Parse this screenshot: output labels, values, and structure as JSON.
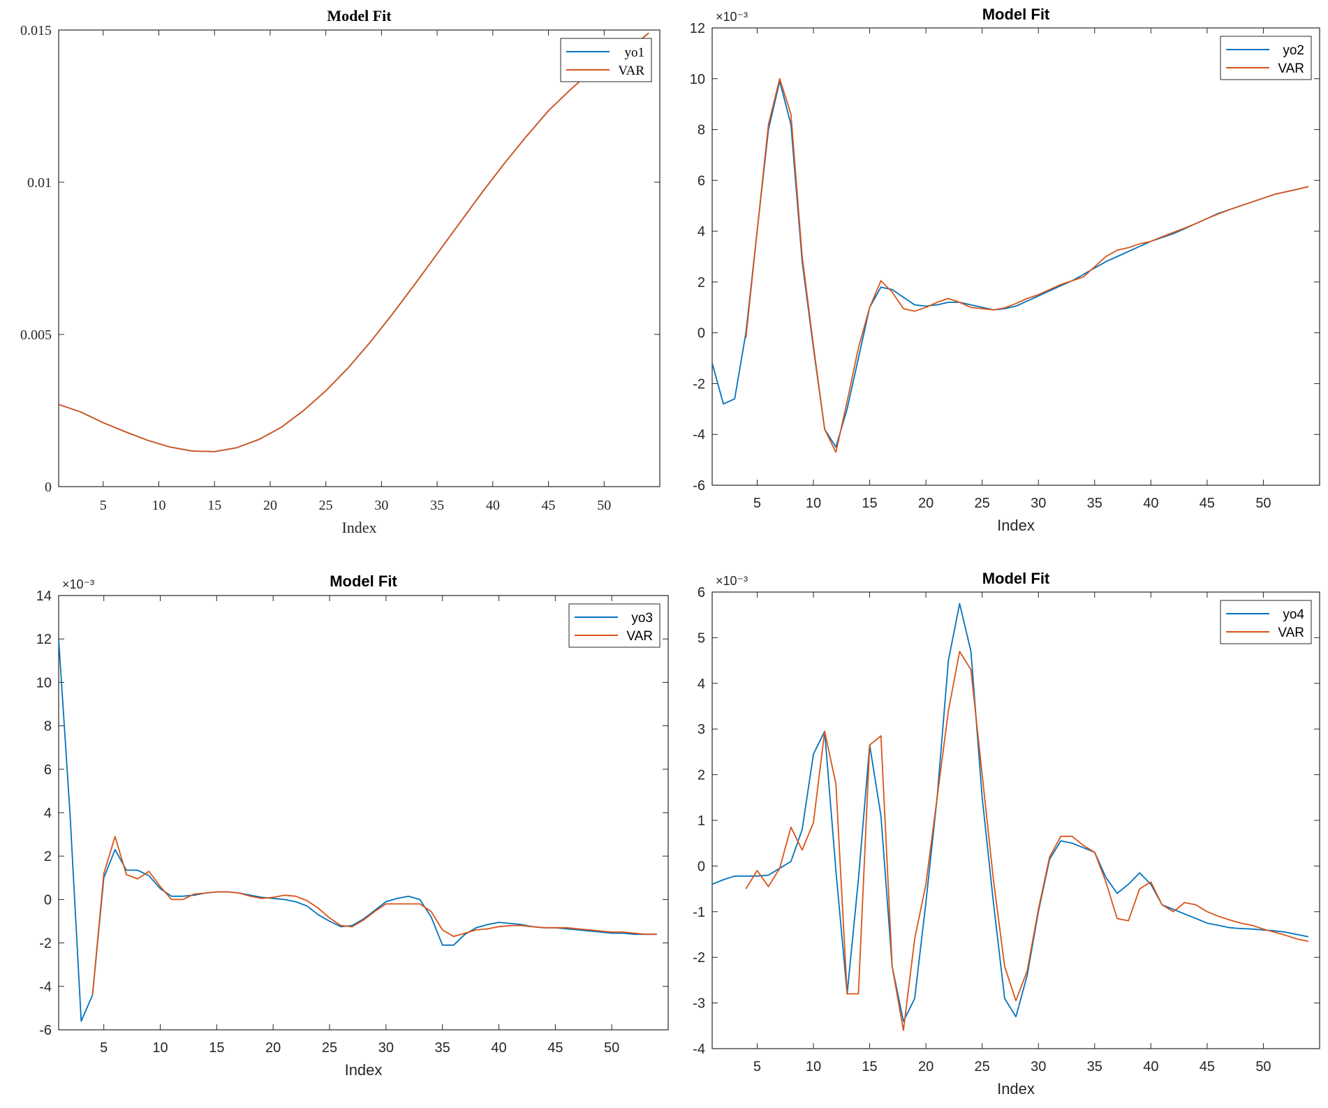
{
  "colors": {
    "blue": "#0072BD",
    "orange": "#D95319",
    "axis": "#262626",
    "background": "#ffffff"
  },
  "chart_data": [
    {
      "type": "line",
      "title": "Model Fit",
      "xlabel": "Index",
      "ylabel": "",
      "exponent_label": "",
      "xlim": [
        1,
        55
      ],
      "ylim": [
        0,
        0.015
      ],
      "xticks": [
        5,
        10,
        15,
        20,
        25,
        30,
        35,
        40,
        45,
        50
      ],
      "xtick_labels": [
        "5",
        "10",
        "15",
        "20",
        "25",
        "30",
        "35",
        "40",
        "45",
        "50"
      ],
      "yticks": [
        0,
        0.005,
        0.01,
        0.015
      ],
      "ytick_labels": [
        "0",
        "0.005",
        "0.01",
        "0.015"
      ],
      "legend": "top-right",
      "grid": false,
      "series": [
        {
          "name": "yo1",
          "color": "#0072BD",
          "x": [
            1,
            3,
            5,
            7,
            9,
            11,
            13,
            15,
            17,
            19,
            21,
            23,
            25,
            27,
            29,
            31,
            33,
            35,
            37,
            39,
            41,
            43,
            45,
            47,
            49,
            51,
            53,
            54
          ],
          "values": [
            0.0027,
            0.00245,
            0.0021,
            0.0018,
            0.00152,
            0.0013,
            0.00117,
            0.00115,
            0.00128,
            0.00155,
            0.00195,
            0.0025,
            0.00315,
            0.0039,
            0.00475,
            0.00568,
            0.00665,
            0.00765,
            0.00865,
            0.00965,
            0.0106,
            0.0115,
            0.01235,
            0.01305,
            0.0137,
            0.01415,
            0.0146,
            0.0149
          ]
        },
        {
          "name": "VAR",
          "color": "#D95319",
          "x": [
            1,
            3,
            5,
            7,
            9,
            11,
            13,
            15,
            17,
            19,
            21,
            23,
            25,
            27,
            29,
            31,
            33,
            35,
            37,
            39,
            41,
            43,
            45,
            47,
            49,
            51,
            53,
            54
          ],
          "values": [
            0.0027,
            0.00245,
            0.0021,
            0.0018,
            0.00152,
            0.0013,
            0.00117,
            0.00115,
            0.00128,
            0.00155,
            0.00195,
            0.0025,
            0.00315,
            0.0039,
            0.00475,
            0.00568,
            0.00665,
            0.00765,
            0.00865,
            0.00965,
            0.0106,
            0.0115,
            0.01235,
            0.01305,
            0.0137,
            0.01415,
            0.0146,
            0.0149
          ]
        }
      ]
    },
    {
      "type": "line",
      "title": "Model Fit",
      "xlabel": "Index",
      "ylabel": "",
      "exponent_label": "×10⁻³",
      "xlim": [
        1,
        55
      ],
      "ylim": [
        -6,
        12
      ],
      "xticks": [
        5,
        10,
        15,
        20,
        25,
        30,
        35,
        40,
        45,
        50
      ],
      "xtick_labels": [
        "5",
        "10",
        "15",
        "20",
        "25",
        "30",
        "35",
        "40",
        "45",
        "50"
      ],
      "yticks": [
        -6,
        -4,
        -2,
        0,
        2,
        4,
        6,
        8,
        10,
        12
      ],
      "ytick_labels": [
        "-6",
        "-4",
        "-2",
        "0",
        "2",
        "4",
        "6",
        "8",
        "10",
        "12"
      ],
      "legend": "top-right",
      "grid": false,
      "series": [
        {
          "name": "yo2",
          "color": "#0072BD",
          "x": [
            1,
            2,
            3,
            4,
            5,
            6,
            7,
            8,
            9,
            10,
            11,
            12,
            13,
            14,
            15,
            16,
            17,
            18,
            19,
            20,
            21,
            22,
            23,
            24,
            25,
            26,
            27,
            28,
            29,
            30,
            31,
            32,
            33,
            34,
            35,
            36,
            37,
            38,
            39,
            40,
            41,
            42,
            43,
            44,
            45,
            46,
            47,
            48,
            49,
            50,
            51,
            52,
            53,
            54
          ],
          "values": [
            -1.2,
            -2.8,
            -2.6,
            0.0,
            4.0,
            8.0,
            9.9,
            8.2,
            2.8,
            -0.6,
            -3.8,
            -4.5,
            -3.0,
            -1.0,
            1.0,
            1.8,
            1.7,
            1.4,
            1.1,
            1.05,
            1.1,
            1.2,
            1.2,
            1.1,
            1.0,
            0.9,
            0.95,
            1.05,
            1.25,
            1.45,
            1.65,
            1.85,
            2.05,
            2.3,
            2.55,
            2.8,
            3.0,
            3.2,
            3.4,
            3.6,
            3.75,
            3.9,
            4.1,
            4.3,
            4.5,
            4.7,
            4.85,
            5.0,
            5.15,
            5.3,
            5.45,
            5.55,
            5.65,
            5.75
          ]
        },
        {
          "name": "VAR",
          "color": "#D95319",
          "x": [
            4,
            5,
            6,
            7,
            8,
            9,
            10,
            11,
            12,
            13,
            14,
            15,
            16,
            17,
            18,
            19,
            20,
            21,
            22,
            23,
            24,
            25,
            26,
            27,
            28,
            29,
            30,
            31,
            32,
            33,
            34,
            35,
            36,
            37,
            38,
            39,
            40,
            41,
            42,
            43,
            44,
            45,
            46,
            47,
            48,
            49,
            50,
            51,
            52,
            53,
            54
          ],
          "values": [
            -0.2,
            4.0,
            8.2,
            10.0,
            8.6,
            3.0,
            -0.5,
            -3.8,
            -4.7,
            -2.7,
            -0.6,
            1.0,
            2.05,
            1.6,
            0.95,
            0.85,
            1.0,
            1.2,
            1.35,
            1.2,
            1.0,
            0.95,
            0.9,
            0.98,
            1.15,
            1.35,
            1.5,
            1.7,
            1.9,
            2.05,
            2.2,
            2.6,
            3.0,
            3.25,
            3.35,
            3.5,
            3.6,
            3.78,
            3.95,
            4.12,
            4.3,
            4.5,
            4.68,
            4.85,
            5.0,
            5.15,
            5.3,
            5.45,
            5.55,
            5.65,
            5.75
          ]
        }
      ]
    },
    {
      "type": "line",
      "title": "Model Fit",
      "xlabel": "Index",
      "ylabel": "",
      "exponent_label": "×10⁻³",
      "xlim": [
        1,
        55
      ],
      "ylim": [
        -6,
        14
      ],
      "xticks": [
        5,
        10,
        15,
        20,
        25,
        30,
        35,
        40,
        45,
        50
      ],
      "xtick_labels": [
        "5",
        "10",
        "15",
        "20",
        "25",
        "30",
        "35",
        "40",
        "45",
        "50"
      ],
      "yticks": [
        -6,
        -4,
        -2,
        0,
        2,
        4,
        6,
        8,
        10,
        12,
        14
      ],
      "ytick_labels": [
        "-6",
        "-4",
        "-2",
        "0",
        "2",
        "4",
        "6",
        "8",
        "10",
        "12",
        "14"
      ],
      "legend": "top-right",
      "grid": false,
      "series": [
        {
          "name": "yo3",
          "color": "#0072BD",
          "x": [
            1,
            2,
            3,
            4,
            5,
            6,
            7,
            8,
            9,
            10,
            11,
            12,
            13,
            14,
            15,
            16,
            17,
            18,
            19,
            20,
            21,
            22,
            23,
            24,
            25,
            26,
            27,
            28,
            29,
            30,
            31,
            32,
            33,
            34,
            35,
            36,
            37,
            38,
            39,
            40,
            41,
            42,
            43,
            44,
            45,
            46,
            47,
            48,
            49,
            50,
            51,
            52,
            53,
            54
          ],
          "values": [
            12.0,
            4.0,
            -5.6,
            -4.4,
            1.0,
            2.3,
            1.35,
            1.35,
            1.1,
            0.5,
            0.15,
            0.15,
            0.2,
            0.3,
            0.35,
            0.35,
            0.3,
            0.2,
            0.1,
            0.05,
            0.0,
            -0.1,
            -0.3,
            -0.7,
            -1.0,
            -1.25,
            -1.2,
            -0.9,
            -0.5,
            -0.1,
            0.05,
            0.15,
            0.0,
            -0.8,
            -2.1,
            -2.1,
            -1.6,
            -1.3,
            -1.15,
            -1.05,
            -1.1,
            -1.15,
            -1.25,
            -1.3,
            -1.3,
            -1.35,
            -1.4,
            -1.45,
            -1.5,
            -1.55,
            -1.55,
            -1.6,
            -1.6,
            -1.6
          ]
        },
        {
          "name": "VAR",
          "color": "#D95319",
          "x": [
            4,
            5,
            6,
            7,
            8,
            9,
            10,
            11,
            12,
            13,
            14,
            15,
            16,
            17,
            18,
            19,
            20,
            21,
            22,
            23,
            24,
            25,
            26,
            27,
            28,
            29,
            30,
            31,
            32,
            33,
            34,
            35,
            36,
            37,
            38,
            39,
            40,
            41,
            42,
            43,
            44,
            45,
            46,
            47,
            48,
            49,
            50,
            51,
            52,
            53,
            54
          ],
          "values": [
            -4.4,
            1.2,
            2.9,
            1.15,
            0.95,
            1.3,
            0.6,
            0.0,
            0.0,
            0.25,
            0.3,
            0.35,
            0.35,
            0.3,
            0.15,
            0.05,
            0.1,
            0.2,
            0.15,
            -0.05,
            -0.4,
            -0.85,
            -1.2,
            -1.25,
            -0.95,
            -0.55,
            -0.2,
            -0.2,
            -0.2,
            -0.2,
            -0.55,
            -1.4,
            -1.7,
            -1.55,
            -1.4,
            -1.35,
            -1.25,
            -1.2,
            -1.2,
            -1.25,
            -1.3,
            -1.3,
            -1.3,
            -1.35,
            -1.4,
            -1.45,
            -1.5,
            -1.5,
            -1.55,
            -1.6,
            -1.6
          ]
        }
      ]
    },
    {
      "type": "line",
      "title": "Model Fit",
      "xlabel": "Index",
      "ylabel": "",
      "exponent_label": "×10⁻³",
      "xlim": [
        1,
        55
      ],
      "ylim": [
        -4,
        6
      ],
      "xticks": [
        5,
        10,
        15,
        20,
        25,
        30,
        35,
        40,
        45,
        50
      ],
      "xtick_labels": [
        "5",
        "10",
        "15",
        "20",
        "25",
        "30",
        "35",
        "40",
        "45",
        "50"
      ],
      "yticks": [
        -4,
        -3,
        -2,
        -1,
        0,
        1,
        2,
        3,
        4,
        5,
        6
      ],
      "ytick_labels": [
        "-4",
        "-3",
        "-2",
        "-1",
        "0",
        "1",
        "2",
        "3",
        "4",
        "5",
        "6"
      ],
      "legend": "top-right",
      "grid": false,
      "series": [
        {
          "name": "yo4",
          "color": "#0072BD",
          "x": [
            1,
            2,
            3,
            4,
            5,
            6,
            7,
            8,
            9,
            10,
            11,
            12,
            13,
            14,
            15,
            16,
            17,
            18,
            19,
            20,
            21,
            22,
            23,
            24,
            25,
            26,
            27,
            28,
            29,
            30,
            31,
            32,
            33,
            34,
            35,
            36,
            37,
            38,
            39,
            40,
            41,
            42,
            43,
            44,
            45,
            46,
            47,
            48,
            49,
            50,
            51,
            52,
            53,
            54
          ],
          "values": [
            -0.4,
            -0.3,
            -0.22,
            -0.22,
            -0.22,
            -0.2,
            -0.05,
            0.1,
            0.8,
            2.45,
            2.95,
            -0.1,
            -2.8,
            -0.3,
            2.65,
            1.1,
            -2.2,
            -3.4,
            -2.9,
            -0.8,
            1.5,
            4.5,
            5.75,
            4.7,
            1.5,
            -0.8,
            -2.9,
            -3.3,
            -2.4,
            -1.0,
            0.15,
            0.55,
            0.5,
            0.4,
            0.3,
            -0.25,
            -0.6,
            -0.4,
            -0.15,
            -0.4,
            -0.85,
            -0.95,
            -1.05,
            -1.15,
            -1.25,
            -1.3,
            -1.35,
            -1.37,
            -1.38,
            -1.4,
            -1.42,
            -1.45,
            -1.5,
            -1.55
          ]
        },
        {
          "name": "VAR",
          "color": "#D95319",
          "x": [
            4,
            5,
            6,
            7,
            8,
            9,
            10,
            11,
            12,
            13,
            14,
            15,
            16,
            17,
            18,
            19,
            20,
            21,
            22,
            23,
            24,
            25,
            26,
            27,
            28,
            29,
            30,
            31,
            32,
            33,
            34,
            35,
            36,
            37,
            38,
            39,
            40,
            41,
            42,
            43,
            44,
            45,
            46,
            47,
            48,
            49,
            50,
            51,
            52,
            53,
            54
          ],
          "values": [
            -0.5,
            -0.1,
            -0.45,
            -0.05,
            0.85,
            0.35,
            0.95,
            2.95,
            1.8,
            -2.8,
            -2.8,
            2.65,
            2.85,
            -2.2,
            -3.6,
            -1.6,
            -0.4,
            1.5,
            3.4,
            4.7,
            4.3,
            2.0,
            -0.3,
            -2.2,
            -2.95,
            -2.3,
            -0.95,
            0.2,
            0.65,
            0.65,
            0.45,
            0.3,
            -0.35,
            -1.15,
            -1.2,
            -0.5,
            -0.35,
            -0.85,
            -1.0,
            -0.8,
            -0.85,
            -1.0,
            -1.1,
            -1.18,
            -1.25,
            -1.3,
            -1.38,
            -1.45,
            -1.52,
            -1.6,
            -1.65
          ]
        }
      ]
    }
  ]
}
